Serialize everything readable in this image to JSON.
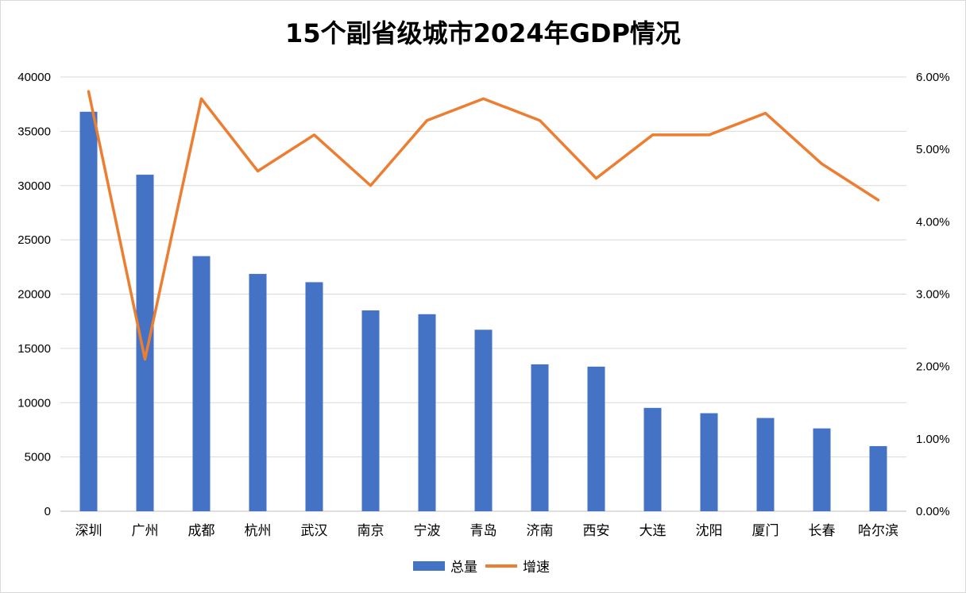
{
  "chart_data": {
    "type": "bar",
    "title": "15个副省级城市2024年GDP情况",
    "categories": [
      "深圳",
      "广州",
      "成都",
      "杭州",
      "武汉",
      "南京",
      "宁波",
      "青岛",
      "济南",
      "西安",
      "大连",
      "沈阳",
      "厦门",
      "长春",
      "哈尔滨"
    ],
    "series": [
      {
        "name": "总量",
        "type": "bar",
        "axis": "left",
        "color": "#4472c4",
        "values": [
          36800,
          31000,
          23500,
          21860,
          21100,
          18500,
          18150,
          16720,
          13530,
          13320,
          9520,
          9030,
          8590,
          7630,
          6000
        ]
      },
      {
        "name": "增速",
        "type": "line",
        "axis": "right",
        "color": "#ed7d31",
        "values": [
          5.8,
          2.1,
          5.7,
          4.7,
          5.2,
          4.5,
          5.4,
          5.7,
          5.4,
          4.6,
          5.2,
          5.2,
          5.5,
          4.8,
          4.3
        ]
      }
    ],
    "y_left": {
      "ylim": [
        0,
        40000
      ],
      "ticks": [
        "0",
        "5000",
        "10000",
        "15000",
        "20000",
        "25000",
        "30000",
        "35000",
        "40000"
      ]
    },
    "y_right": {
      "ylim": [
        0,
        6
      ],
      "ticks": [
        "0.00%",
        "1.00%",
        "2.00%",
        "3.00%",
        "4.00%",
        "5.00%",
        "6.00%"
      ]
    },
    "grid": true,
    "legend": {
      "placement": "bottom",
      "items": [
        "总量",
        "增速"
      ]
    }
  }
}
